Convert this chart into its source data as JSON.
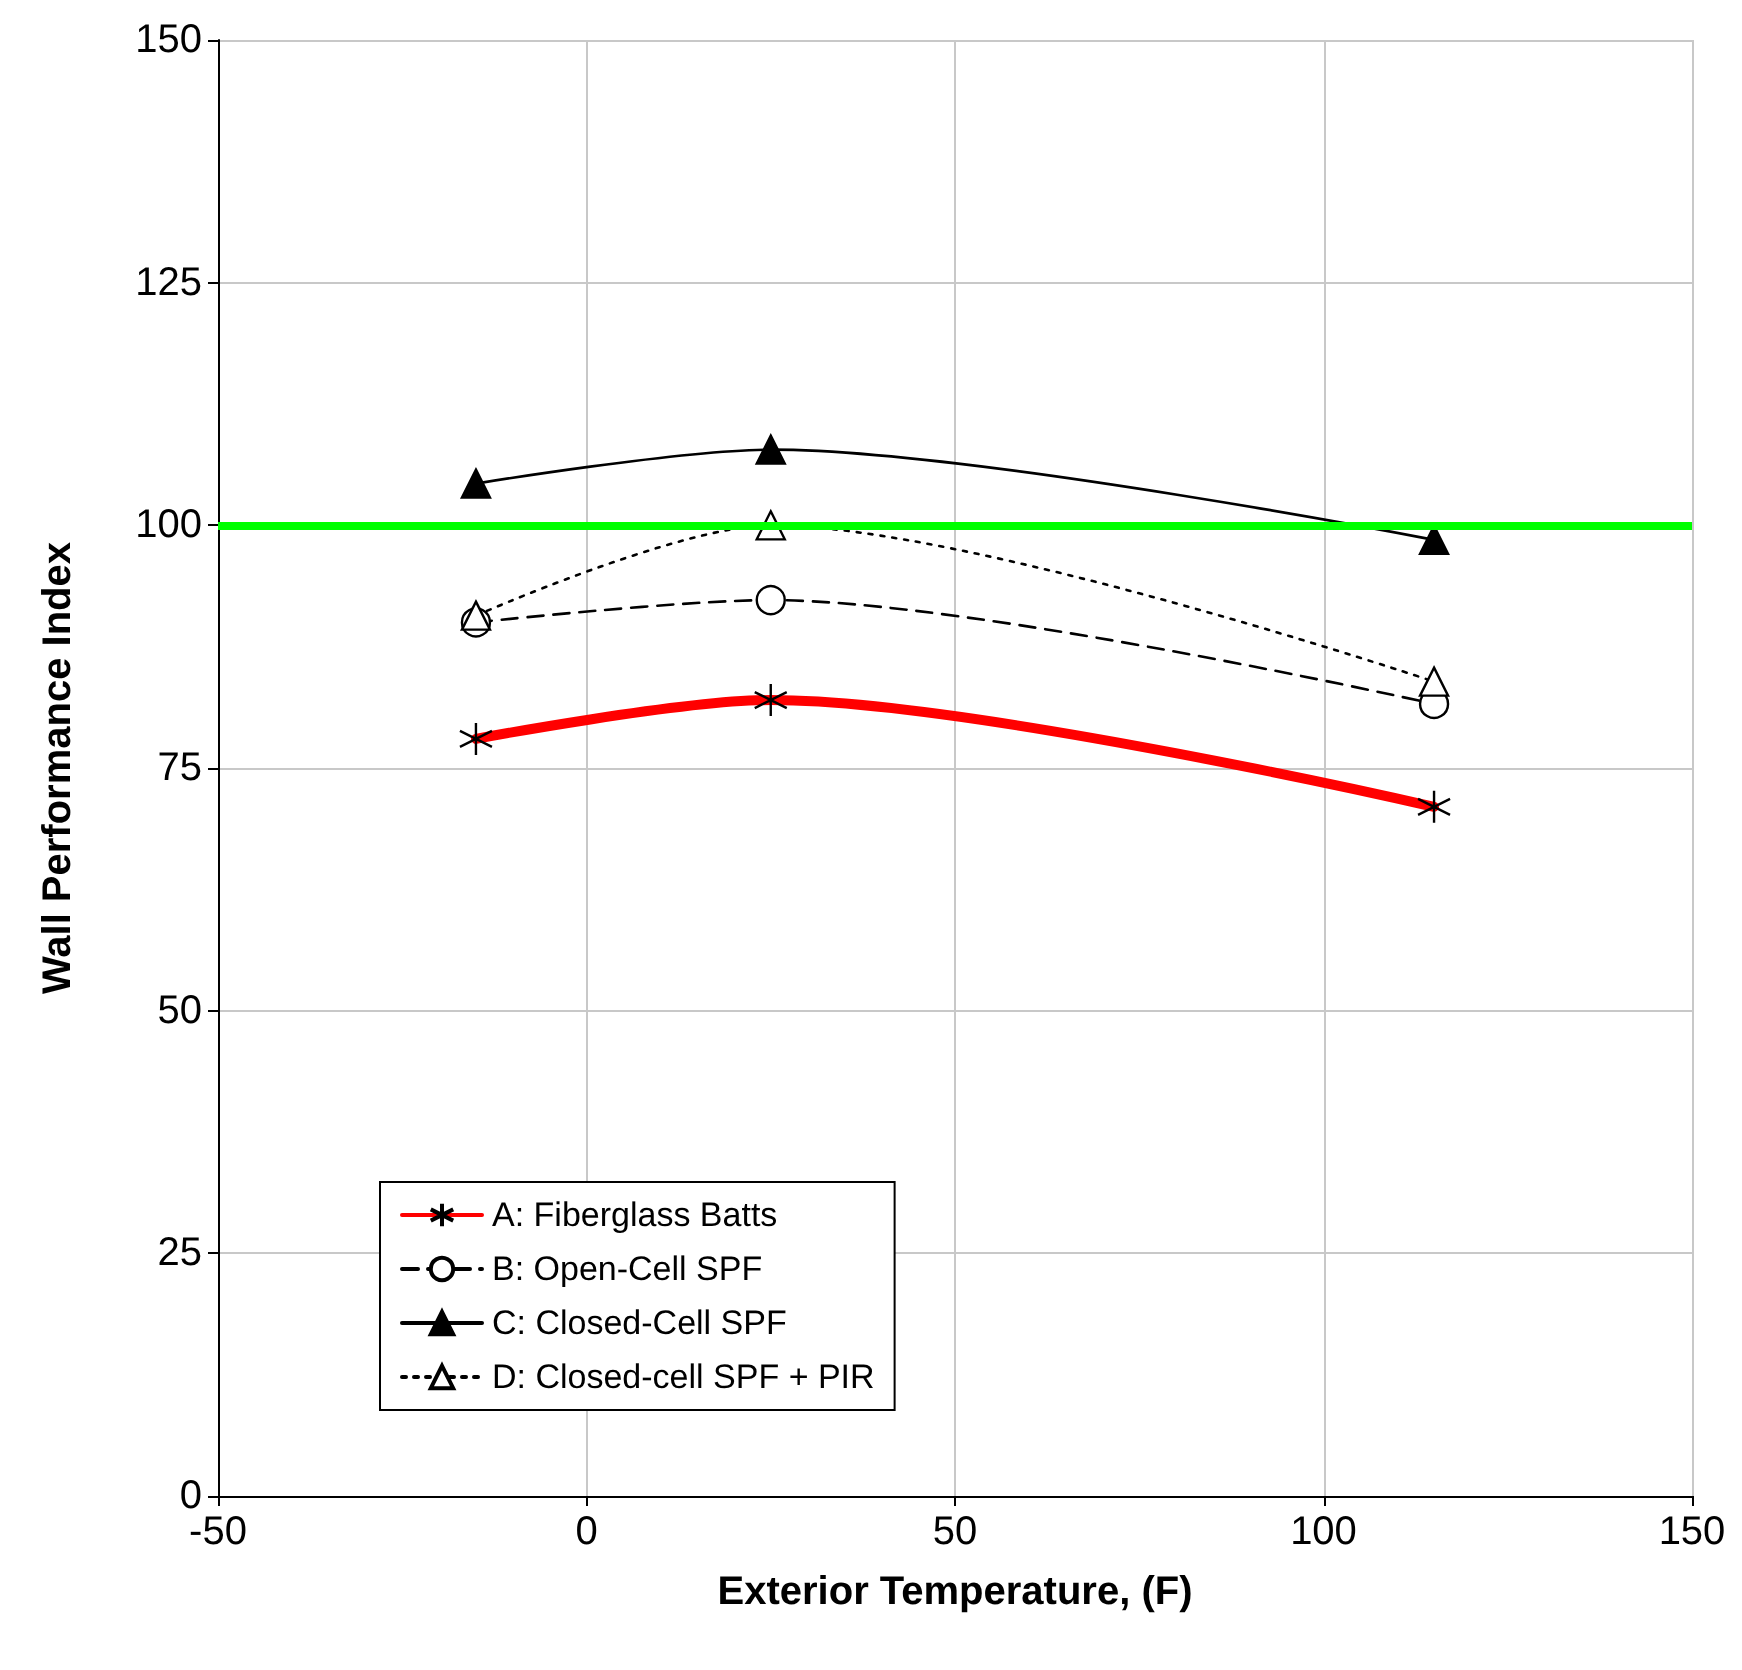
{
  "chart_data": {
    "type": "line",
    "xlabel": "Exterior Temperature, (F)",
    "ylabel": "Wall Performance Index",
    "x": [
      -15,
      25,
      115
    ],
    "series": [
      {
        "name": "A: Fiberglass Batts",
        "color": "#ff0000",
        "values": [
          78,
          82,
          71
        ],
        "marker": "cross",
        "line_style": "solid"
      },
      {
        "name": "B: Open-Cell SPF",
        "color": "#000000",
        "values": [
          90,
          92.3,
          81.6
        ],
        "marker": "circle",
        "line_style": "dashed"
      },
      {
        "name": "C: Closed-Cell SPF",
        "color": "#000000",
        "values": [
          104.3,
          107.8,
          98.5
        ],
        "marker": "triangle",
        "line_style": "solid"
      },
      {
        "name": "D: Closed-cell SPF + PIR",
        "color": "#000000",
        "values": [
          90.7,
          100,
          83.9
        ],
        "marker": "triangle",
        "line_style": "dotted"
      }
    ],
    "xlim": [
      -50,
      150
    ],
    "xticks": [
      -50,
      0,
      50,
      100,
      150
    ],
    "ylim": [
      0,
      150
    ],
    "yticks": [
      0,
      25,
      50,
      75,
      100,
      125,
      150
    ],
    "ref_lines": [
      {
        "axis": "y",
        "value": 100,
        "color": "#00ff00"
      }
    ],
    "grid": true,
    "legend": "bottom left"
  }
}
